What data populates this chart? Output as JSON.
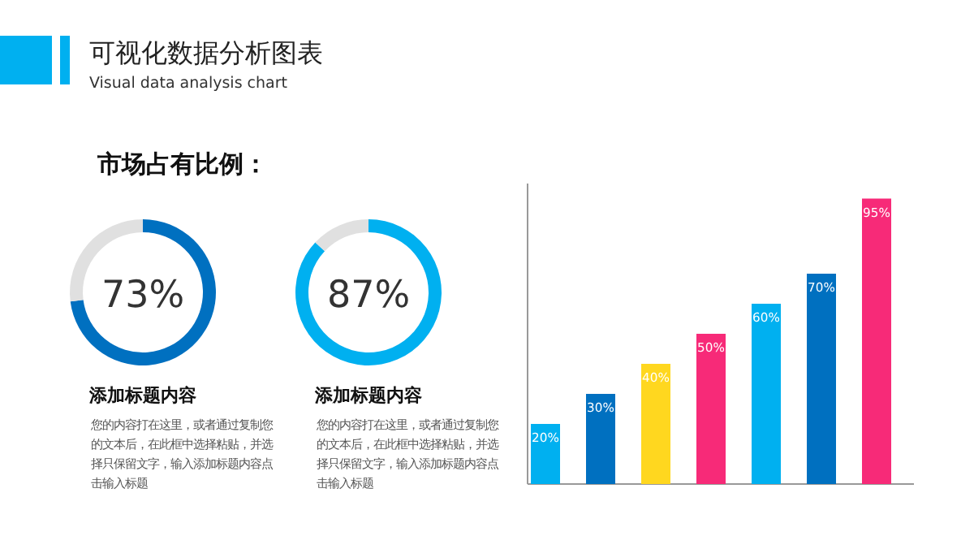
{
  "chart_data": [
    {
      "type": "other",
      "title": "可视化数据分析图表",
      "subtitle": "Visual data analysis chart",
      "annotations": [
        "市场占有比例："
      ]
    },
    {
      "type": "donut",
      "title": "添加标题内容",
      "categories": [
        null,
        null
      ],
      "values": [
        73,
        27
      ],
      "colors": [
        "#0070c0",
        "#e0e0e0"
      ],
      "value_labels": [
        "73%",
        null
      ],
      "annotations": [
        "您的内容打在这里，或者通过复制您的文本后，在此框中选择粘贴，并选择只保留文字，输入添加标题内容点击输入标题"
      ]
    },
    {
      "type": "donut",
      "title": "添加标题内容",
      "categories": [
        null,
        null
      ],
      "values": [
        87,
        13
      ],
      "colors": [
        "#00b0f0",
        "#e0e0e0"
      ],
      "value_labels": [
        "87%",
        null
      ],
      "annotations": [
        "您的内容打在这里，或者通过复制您的文本后，在此框中选择粘贴，并选择只保留文字，输入添加标题内容点击输入标题"
      ]
    },
    {
      "type": "bar",
      "categories": [
        null,
        null,
        null,
        null,
        null,
        null,
        null
      ],
      "values": [
        20,
        30,
        40,
        50,
        60,
        70,
        95
      ],
      "colors": [
        "#00b0f0",
        "#0070c0",
        "#ffd71f",
        "#f72a78",
        "#00b0f0",
        "#0070c0",
        "#f72a78"
      ],
      "value_labels": [
        "20%",
        "30%",
        "40%",
        "50%",
        "60%",
        "70%",
        "95%"
      ],
      "ylim": [
        0,
        100
      ]
    }
  ]
}
